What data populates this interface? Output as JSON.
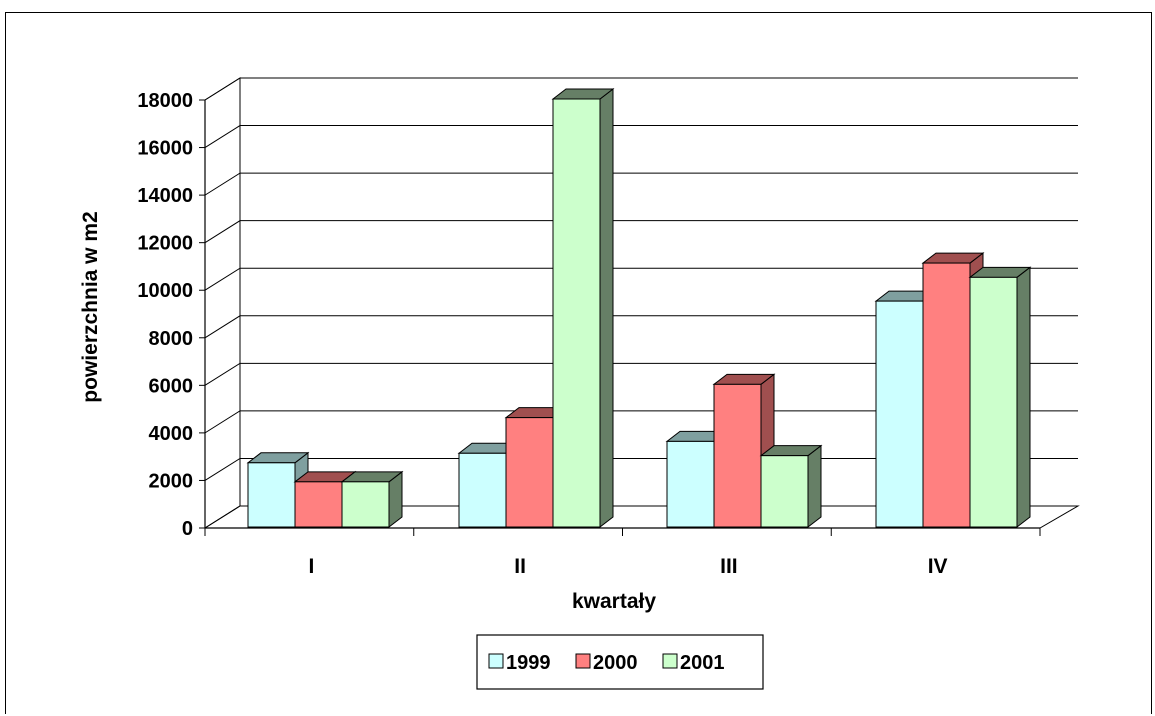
{
  "chart_data": {
    "type": "bar",
    "title": "",
    "xlabel": "kwartały",
    "ylabel": "powierzchnia w m2",
    "categories": [
      "I",
      "II",
      "III",
      "IV"
    ],
    "ylim": [
      0,
      18000
    ],
    "yticks": [
      0,
      2000,
      4000,
      6000,
      8000,
      10000,
      12000,
      14000,
      16000,
      18000
    ],
    "grid": true,
    "legend_position": "bottom",
    "series": [
      {
        "name": "1999",
        "values": [
          2700,
          3100,
          3600,
          9500
        ],
        "color": "#ccffff",
        "shade": "#7f9f9f"
      },
      {
        "name": "2000",
        "values": [
          1900,
          4600,
          6000,
          11100
        ],
        "color": "#ff8080",
        "shade": "#a04f4f"
      },
      {
        "name": "2001",
        "values": [
          1900,
          18000,
          3000,
          10500
        ],
        "color": "#ccffcc",
        "shade": "#667f66"
      }
    ]
  }
}
